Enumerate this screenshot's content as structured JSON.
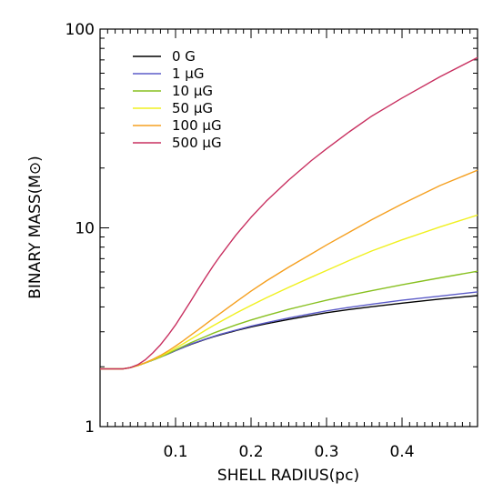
{
  "chart_data": {
    "type": "line",
    "xlabel": "SHELL RADIUS(pc)",
    "ylabel": "BINARY MASS(M⊙)",
    "x_scale": "linear",
    "y_scale": "log",
    "xlim": [
      0.0,
      0.5
    ],
    "ylim": [
      1,
      100
    ],
    "x_ticks": [
      0.1,
      0.2,
      0.3,
      0.4
    ],
    "x_tick_labels": [
      "0.1",
      "0.2",
      "0.3",
      "0.4"
    ],
    "y_ticks": [
      1,
      10,
      100
    ],
    "y_tick_labels": [
      "1",
      "10",
      "100"
    ],
    "grid": false,
    "legend_position": "top-left",
    "x": [
      0.0,
      0.03,
      0.04,
      0.05,
      0.06,
      0.07,
      0.08,
      0.09,
      0.1,
      0.11,
      0.12,
      0.13,
      0.14,
      0.15,
      0.16,
      0.18,
      0.2,
      0.22,
      0.25,
      0.28,
      0.3,
      0.33,
      0.36,
      0.4,
      0.45,
      0.5
    ],
    "series": [
      {
        "name": "0 G",
        "color": "#000000",
        "values": [
          1.95,
          1.95,
          1.98,
          2.03,
          2.09,
          2.16,
          2.24,
          2.32,
          2.41,
          2.5,
          2.59,
          2.67,
          2.75,
          2.83,
          2.9,
          3.04,
          3.17,
          3.29,
          3.46,
          3.63,
          3.74,
          3.88,
          4.01,
          4.18,
          4.38,
          4.56
        ]
      },
      {
        "name": "1 μG",
        "color": "#5b5bc8",
        "values": [
          1.95,
          1.95,
          1.98,
          2.03,
          2.09,
          2.16,
          2.24,
          2.32,
          2.41,
          2.5,
          2.6,
          2.68,
          2.76,
          2.84,
          2.92,
          3.06,
          3.2,
          3.33,
          3.52,
          3.7,
          3.82,
          3.98,
          4.13,
          4.32,
          4.53,
          4.76
        ]
      },
      {
        "name": "10 μG",
        "color": "#88c020",
        "values": [
          1.95,
          1.95,
          1.98,
          2.03,
          2.09,
          2.16,
          2.24,
          2.33,
          2.43,
          2.53,
          2.64,
          2.74,
          2.84,
          2.95,
          3.05,
          3.25,
          3.44,
          3.62,
          3.89,
          4.15,
          4.32,
          4.58,
          4.83,
          5.17,
          5.6,
          6.05
        ]
      },
      {
        "name": "50 μG",
        "color": "#f0f020",
        "values": [
          1.95,
          1.95,
          1.98,
          2.03,
          2.09,
          2.17,
          2.26,
          2.36,
          2.48,
          2.61,
          2.75,
          2.9,
          3.06,
          3.22,
          3.38,
          3.72,
          4.07,
          4.44,
          5.02,
          5.65,
          6.1,
          6.85,
          7.65,
          8.7,
          10.1,
          11.6
        ]
      },
      {
        "name": "100 μG",
        "color": "#f5a020",
        "values": [
          1.95,
          1.95,
          1.98,
          2.03,
          2.1,
          2.18,
          2.28,
          2.4,
          2.54,
          2.7,
          2.88,
          3.07,
          3.28,
          3.5,
          3.73,
          4.24,
          4.8,
          5.4,
          6.35,
          7.4,
          8.2,
          9.5,
          11.0,
          13.2,
          16.3,
          19.5
        ]
      },
      {
        "name": "500 μG",
        "color": "#c83060",
        "values": [
          1.95,
          1.95,
          1.98,
          2.05,
          2.17,
          2.35,
          2.58,
          2.88,
          3.25,
          3.72,
          4.27,
          4.92,
          5.65,
          6.45,
          7.3,
          9.2,
          11.3,
          13.6,
          17.4,
          21.8,
          25.0,
          30.4,
          36.5,
          45.0,
          57.5,
          72.0
        ]
      }
    ]
  }
}
